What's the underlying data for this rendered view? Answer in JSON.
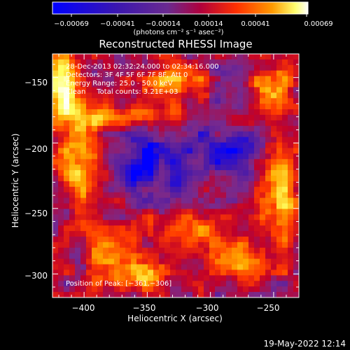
{
  "colorbar": {
    "tick_labels": [
      "−0.00069",
      "−0.00041",
      "−0.00014",
      "0.00014",
      "0.00041",
      "0.00069"
    ],
    "units": "(photons cm⁻² s⁻¹ asec⁻²)"
  },
  "header": {
    "line1": "28-Dec-2013 02:32:24.000 to 02:34:16.000",
    "line2": "Detectors: 3F 4F 5F 6F 7F 8F, Att 0",
    "line3": "Energy Range: 25.0 - 50.0 keV",
    "line4": "Clean     Total counts: 3.21E+03"
  },
  "peak_label": "Position of Peak: [−361,−306]",
  "footer_timestamp": "19-May-2022 12:14",
  "chart_data": {
    "type": "heatmap",
    "title": "Reconstructed RHESSI Image",
    "xlabel": "Heliocentric X (arcsec)",
    "ylabel": "Heliocentric Y (arcsec)",
    "xlim": [
      -425,
      -230
    ],
    "ylim": [
      -318,
      -132
    ],
    "x_ticks": [
      -400,
      -350,
      -300,
      -250
    ],
    "x_tick_labels": [
      "−400",
      "−350",
      "−300",
      "−250"
    ],
    "y_ticks": [
      -150,
      -200,
      -250,
      -300
    ],
    "y_tick_labels": [
      "−150",
      "−200",
      "−250",
      "−300"
    ],
    "colorbar_range": [
      -0.00069,
      0.00069
    ],
    "colormap": [
      "#0000ff",
      "#4a1aa8",
      "#7a2a8c",
      "#c0002a",
      "#ff3a00",
      "#ffaa00",
      "#ffff60",
      "#ffffff"
    ],
    "peak_position": [
      -361,
      -306
    ]
  }
}
